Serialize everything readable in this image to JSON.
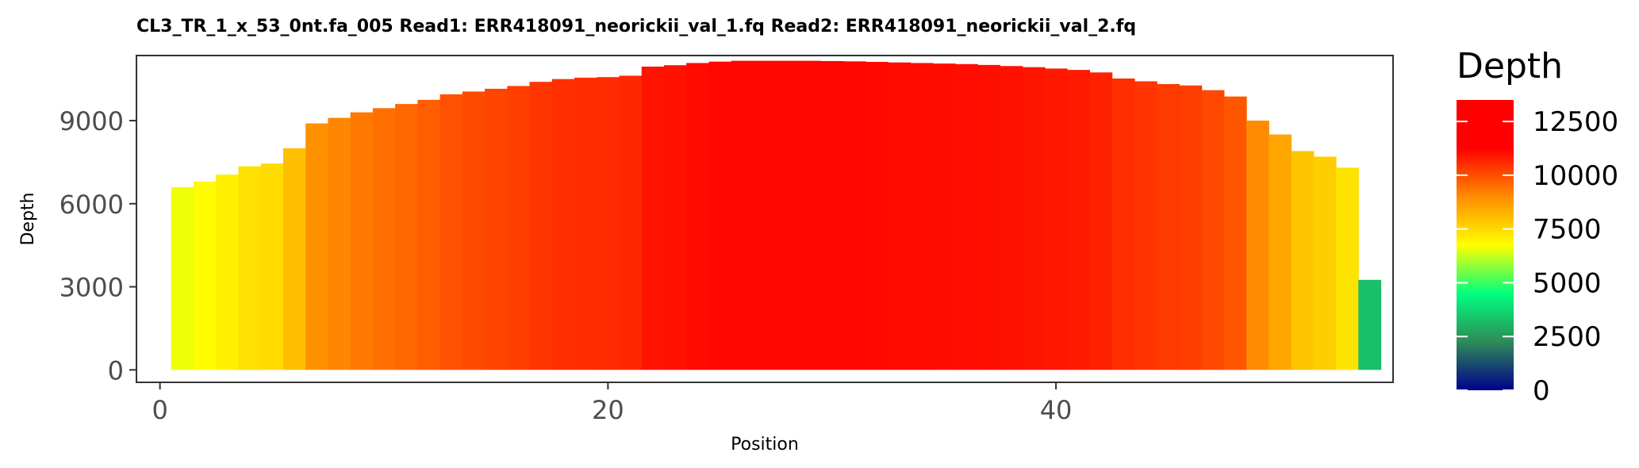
{
  "chart_data": {
    "type": "bar",
    "title": "CL3_TR_1_x_53_0nt.fa_005   Read1: ERR418091_neorickii_val_1.fq   Read2: ERR418091_neorickii_val_2.fq",
    "xlabel": "Position",
    "ylabel": "Depth",
    "xlim": [
      -1.05,
      55.05
    ],
    "ylim": [
      -450,
      11350
    ],
    "x_ticks": [
      0,
      20,
      40
    ],
    "x_tick_labels": [
      "0",
      "20",
      "40"
    ],
    "y_ticks": [
      0,
      3000,
      6000,
      9000
    ],
    "y_tick_labels": [
      "0",
      "3000",
      "6000",
      "9000"
    ],
    "grid": false,
    "x": [
      1,
      2,
      3,
      4,
      5,
      6,
      7,
      8,
      9,
      10,
      11,
      12,
      13,
      14,
      15,
      16,
      17,
      18,
      19,
      20,
      21,
      22,
      23,
      24,
      25,
      26,
      27,
      28,
      29,
      30,
      31,
      32,
      33,
      34,
      35,
      36,
      37,
      38,
      39,
      40,
      41,
      42,
      43,
      44,
      45,
      46,
      47,
      48,
      49,
      50,
      51,
      52,
      53,
      54
    ],
    "values": [
      6600,
      6800,
      7050,
      7350,
      7450,
      8000,
      8900,
      9100,
      9300,
      9450,
      9600,
      9750,
      9950,
      10050,
      10150,
      10250,
      10400,
      10500,
      10550,
      10570,
      10620,
      10950,
      11000,
      11080,
      11130,
      11160,
      11160,
      11160,
      11160,
      11150,
      11140,
      11120,
      11100,
      11080,
      11060,
      11040,
      11010,
      10970,
      10930,
      10880,
      10830,
      10740,
      10520,
      10420,
      10320,
      10270,
      10100,
      9870,
      9000,
      8500,
      7900,
      7700,
      7300,
      3250
    ],
    "colorbar": {
      "title": "Depth",
      "min": 0,
      "max": 13500,
      "ticks": [
        0,
        2500,
        5000,
        7500,
        10000,
        12500
      ],
      "tick_labels": [
        "0",
        "2500",
        "5000",
        "7500",
        "10000",
        "12500"
      ],
      "colors": [
        "#00008b",
        "#2e8b57",
        "#00ff7f",
        "#ffff00",
        "#ff8c00",
        "#ff0000",
        "#ff0000"
      ],
      "placement": "right"
    }
  }
}
